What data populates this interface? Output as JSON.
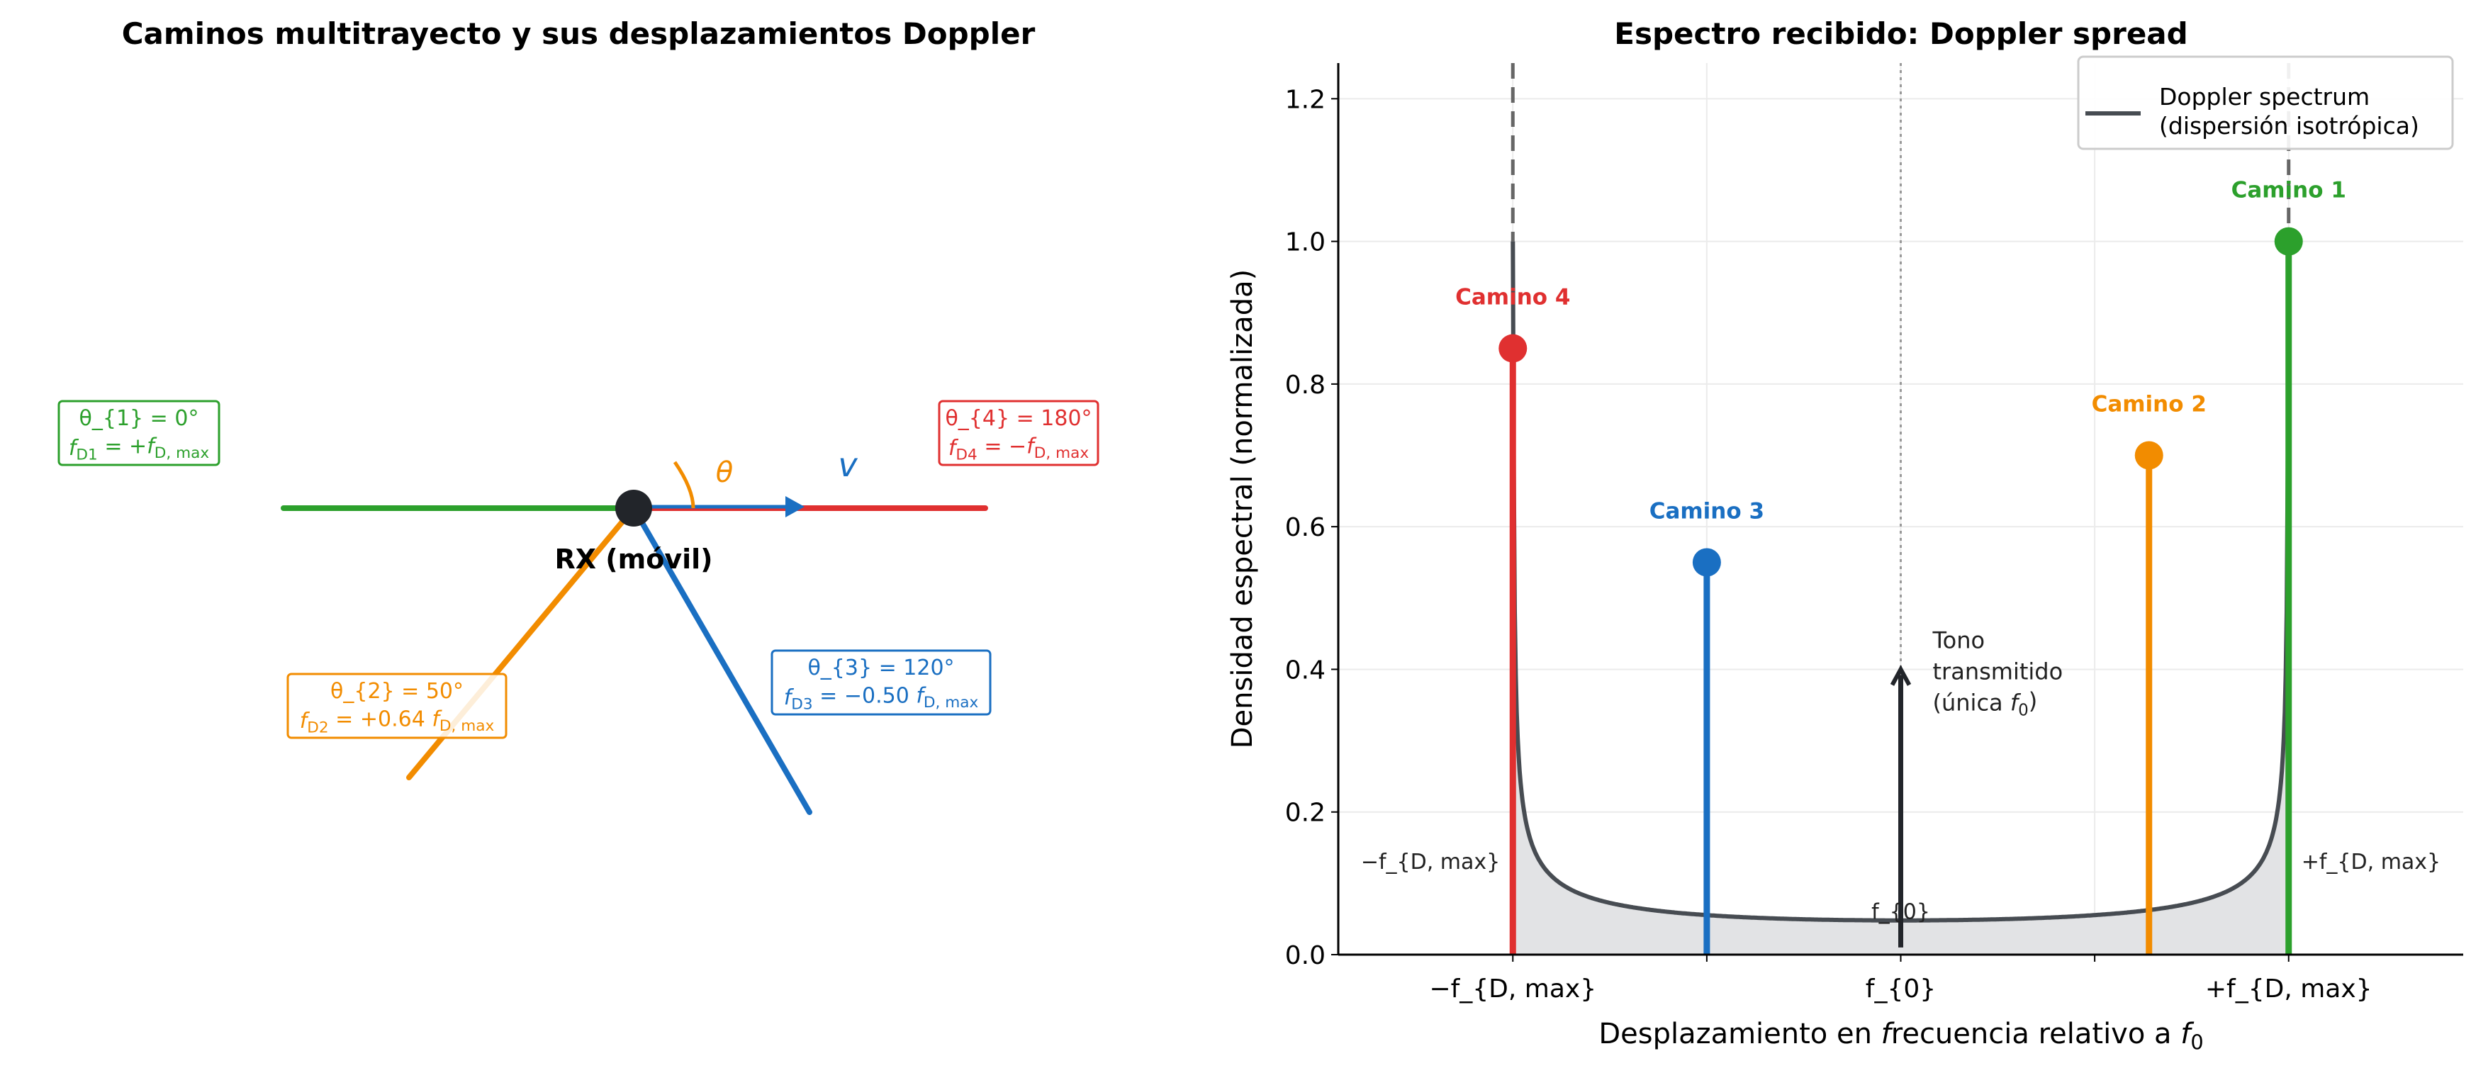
{
  "colors": {
    "path1": "#2ca02c",
    "path2": "#f28c00",
    "path3": "#1a6fc2",
    "path4": "#e03030",
    "rx": "#22252a",
    "spectrum": "#474c52",
    "fill": "#e2e3e5"
  },
  "left": {
    "title": "Caminos multitrayecto y sus desplazamientos Doppler",
    "rx_label": "RX (móvil)",
    "theta_label": "θ",
    "velocity_label": "v",
    "paths": [
      {
        "theta": "θ_{1} = 0°",
        "fd": "f_{D1} = +f_{D, max}",
        "angle_deg": 0
      },
      {
        "theta": "θ_{2} = 50°",
        "fd": "f_{D2} = +0.64 f_{D, max}",
        "angle_deg": 50
      },
      {
        "theta": "θ_{3} = 120°",
        "fd": "f_{D3} = −0.50 f_{D, max}",
        "angle_deg": 120
      },
      {
        "theta": "θ_{4} = 180°",
        "fd": "f_{D4} = −f_{D, max}",
        "angle_deg": 180
      }
    ]
  },
  "chart_data": {
    "type": "line",
    "title": "Espectro recibido: Doppler spread",
    "xlabel": "Desplazamiento en frecuencia relativo a f_{0}",
    "ylabel": "Densidad espectral (normalizada)",
    "xlim": [
      -1.45,
      1.45
    ],
    "ylim": [
      0,
      1.25
    ],
    "xticks": [
      -1,
      -0.5,
      0,
      0.5,
      1
    ],
    "xtick_labels": [
      "−f_{D, max}",
      "",
      "f_{0}",
      "",
      "+f_{D, max}"
    ],
    "yticks": [
      0,
      0.2,
      0.4,
      0.6,
      0.8,
      1.0,
      1.2
    ],
    "ytick_labels": [
      "0.0",
      "0.2",
      "0.4",
      "0.6",
      "0.8",
      "1.0",
      "1.2"
    ],
    "grid": true,
    "legend": {
      "position": "top-right",
      "label_line1": "Doppler spectrum",
      "label_line2": "(dispersión isotrópica)"
    },
    "spectrum": {
      "name": "Doppler spectrum (dispersión isotrópica)",
      "min_value": 0.048,
      "cap": 1.0
    },
    "stems": [
      {
        "label": "Camino 1",
        "x": 1.0,
        "y": 1.0
      },
      {
        "label": "Camino 2",
        "x": 0.64,
        "y": 0.7
      },
      {
        "label": "Camino 3",
        "x": -0.5,
        "y": 0.55
      },
      {
        "label": "Camino 4",
        "x": -1.0,
        "y": 0.85
      }
    ],
    "carrier": {
      "x": 0,
      "y": 0.4,
      "label": "f_{0}",
      "annotation": [
        "Tono",
        "transmitido",
        "(única f_{0})"
      ]
    },
    "edge_labels": {
      "left": "−f_{D, max}",
      "right": "+f_{D, max}"
    }
  }
}
